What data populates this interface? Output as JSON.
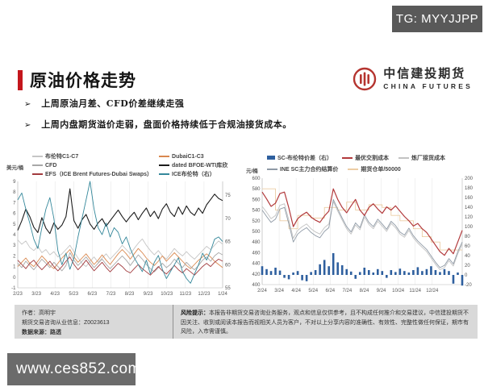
{
  "badge": {
    "text": "TG: MYYJJPP"
  },
  "header": {
    "title": "原油价格走势"
  },
  "logo": {
    "name": "中信建投期货",
    "subtitle": "CHINA FUTURES",
    "brand_red": "#b5342f"
  },
  "bullet_marker": "➢",
  "bullets": [
    "上周原油月差、CFD价差继续走强",
    "上周内盘期货溢价走弱，盘面价格持续低于合规油接货成本。"
  ],
  "footer": {
    "author_line": "作者：高明宇",
    "license_line": "期货交易咨询从业信息：Z0023613",
    "source_line": "数据来源：路透",
    "risk_label": "风险提示：",
    "risk_text": "本报告非期货交易咨询业务服务，观点和信息仅供参考，且不构成任何推介和交易建议，中信建投期货不因关注、收到或阅读本报告而视相关人员为客户，不对以上分享内容的准确性、有效性、完整性做任何保证，期市有风险，入市需谨慎。"
  },
  "watermark": {
    "text": "www.ces852.com"
  },
  "colors": {
    "accent_red": "#c4161c",
    "badge_bg": "#595959",
    "footer_bg": "#d9d9d9",
    "watermark_bg": "#6b6b6b"
  },
  "chart_data": [
    {
      "type": "line",
      "unit_label": "美元/桶",
      "legend_layout": "grid",
      "x_labels": [
        "2/23",
        "3/23",
        "4/23",
        "5/23",
        "6/23",
        "7/23",
        "8/23",
        "9/23",
        "10/23",
        "11/23",
        "12/23",
        "1/24"
      ],
      "x_span": 1.0,
      "axes": {
        "left": {
          "min": -1,
          "max": 9,
          "step": 1
        },
        "right": {
          "min": 55,
          "max": 78,
          "step": 5
        }
      },
      "series": [
        {
          "name": "布伦特C1-C7",
          "color": "#c6c6c6",
          "axis": "left",
          "type": "line",
          "values": [
            3.5,
            3.1,
            3.4,
            2.8,
            2.5,
            2.9,
            2.3,
            2.6,
            2.1,
            2.4,
            1.9,
            2.2,
            2.6,
            3.0,
            2.4,
            1.8,
            1.3,
            1.0,
            1.5,
            1.9,
            1.4,
            1.8,
            2.2,
            1.7,
            2.1,
            2.5,
            3.0,
            2.6,
            2.2,
            2.7,
            3.2,
            3.6,
            3.0,
            2.5,
            2.1,
            2.5,
            2.0,
            1.7,
            2.2,
            2.7,
            2.3,
            2.0,
            2.4,
            2.0,
            1.7,
            2.1,
            2.5,
            2.9,
            2.6,
            3.0,
            3.4,
            3.1
          ]
        },
        {
          "name": "DubaiC1-C3",
          "color": "#d9884f",
          "axis": "left",
          "type": "line",
          "values": [
            1.0,
            1.4,
            1.8,
            1.3,
            1.0,
            1.5,
            2.0,
            1.6,
            1.1,
            0.8,
            1.3,
            1.8,
            2.2,
            2.6,
            1.9,
            1.4,
            1.8,
            2.2,
            1.7,
            1.2,
            1.6,
            2.1,
            1.6,
            1.2,
            1.7,
            2.2,
            2.6,
            2.2,
            1.7,
            2.2,
            2.7,
            2.3,
            1.8,
            1.4,
            1.1,
            1.5,
            2.0,
            1.5,
            1.9,
            2.3,
            1.9,
            1.5,
            1.1,
            0.8,
            1.2,
            1.6,
            1.9,
            2.2,
            1.9,
            1.5,
            1.2,
            0.9
          ]
        },
        {
          "name": "CFD",
          "color": "#a8a8a8",
          "axis": "left",
          "type": "line",
          "values": [
            1.3,
            0.9,
            1.5,
            1.1,
            0.7,
            1.2,
            1.7,
            1.3,
            0.9,
            1.4,
            1.0,
            0.6,
            1.1,
            2.3,
            1.6,
            1.1,
            1.5,
            1.9,
            1.4,
            0.9,
            1.3,
            1.7,
            1.2,
            0.8,
            1.2,
            1.6,
            2.0,
            1.6,
            1.1,
            1.6,
            2.1,
            1.7,
            1.2,
            0.8,
            0.5,
            0.9,
            1.3,
            0.9,
            1.2,
            1.7,
            1.3,
            0.9,
            1.4,
            1.0,
            0.7,
            1.1,
            1.6,
            1.9,
            1.5,
            2.0,
            2.3,
            2.1
          ]
        },
        {
          "name": "dated BFOE-WTI库欣",
          "color": "#1c1c1c",
          "axis": "left",
          "type": "line",
          "width": 1.1,
          "values": [
            4.4,
            5.3,
            6.4,
            5.7,
            4.7,
            4.2,
            5.6,
            4.6,
            4.1,
            5.1,
            4.5,
            4.9,
            5.7,
            8.3,
            5.3,
            4.6,
            5.4,
            5.9,
            5.0,
            4.5,
            5.1,
            5.5,
            4.8,
            5.3,
            5.8,
            6.3,
            5.7,
            5.2,
            5.7,
            6.1,
            5.4,
            6.0,
            6.5,
            5.7,
            6.2,
            5.5,
            6.4,
            6.9,
            6.1,
            5.7,
            6.6,
            5.9,
            6.7,
            6.1,
            5.8,
            6.5,
            6.0,
            6.8,
            7.3,
            7.8,
            7.4,
            7.2
          ]
        },
        {
          "name": "EFS（ICE Brent Futures-Dubai Swaps）",
          "color": "#a23b3e",
          "axis": "left",
          "type": "line",
          "values": [
            1.6,
            1.2,
            0.8,
            1.3,
            1.6,
            1.1,
            0.7,
            1.1,
            1.5,
            1.0,
            0.6,
            1.0,
            1.5,
            1.9,
            1.2,
            0.7,
            1.1,
            1.6,
            1.1,
            0.6,
            1.0,
            1.4,
            0.9,
            0.5,
            0.9,
            1.3,
            1.0,
            0.6,
            0.4,
            0.8,
            1.2,
            0.8,
            0.5,
            0.2,
            0.6,
            1.0,
            0.6,
            0.3,
            0.7,
            1.1,
            0.7,
            0.4,
            0.8,
            0.5,
            0.2,
            0.6,
            1.0,
            1.3,
            1.0,
            1.4,
            1.7,
            1.5
          ]
        },
        {
          "name": "ICE布伦特（右）",
          "color": "#35889b",
          "axis": "right",
          "type": "line",
          "values": [
            74,
            75.5,
            72,
            69,
            65.5,
            63.5,
            68,
            72,
            74.5,
            70,
            63,
            60,
            62.5,
            59,
            61.5,
            66,
            70,
            74,
            78,
            72,
            68,
            66.5,
            69,
            66,
            68,
            67,
            64.5,
            66,
            63.5,
            61.5,
            60,
            58.5,
            61,
            58,
            60.5,
            62,
            59,
            57,
            58.5,
            60,
            61.5,
            58.5,
            57,
            56,
            58,
            60,
            62.5,
            61,
            63,
            65.5,
            66,
            65
          ]
        }
      ]
    },
    {
      "type": "line+bar",
      "unit_label": "元/桶",
      "legend_layout": "flow",
      "x_labels": [
        "2/24",
        "3/24",
        "4/24",
        "5/24",
        "6/24",
        "7/24",
        "8/24",
        "9/24",
        "10/24",
        "11/24",
        "12/24"
      ],
      "x_span": 0.85,
      "axes": {
        "left": {
          "min": 400,
          "max": 600,
          "step": 20
        },
        "right": {
          "min": -20,
          "max": 200,
          "step": 20
        }
      },
      "draw_order": [
        0,
        4,
        2,
        3,
        1
      ],
      "series": [
        {
          "name": "SC-布伦特价差（右）",
          "color": "#2e5f9e",
          "axis": "right",
          "type": "bar",
          "values": [
            18,
            12,
            8,
            15,
            9,
            -6,
            -9,
            5,
            8,
            -11,
            -13,
            6,
            10,
            22,
            31,
            18,
            45,
            26,
            20,
            12,
            7,
            -8,
            6,
            15,
            10,
            5,
            12,
            8,
            -6,
            10,
            6,
            13,
            8,
            5,
            10,
            16,
            8,
            12,
            18,
            10,
            6,
            12,
            8,
            -18,
            5,
            -22
          ]
        },
        {
          "name": "最优交割成本",
          "color": "#b23a3c",
          "axis": "left",
          "type": "line",
          "width": 1.2,
          "values": [
            574,
            561,
            547,
            553,
            571,
            574,
            544,
            509,
            524,
            531,
            536,
            527,
            521,
            517,
            529,
            538,
            580,
            560,
            545,
            535,
            548,
            560,
            540,
            530,
            545,
            552,
            542,
            534,
            546,
            540,
            548,
            538,
            528,
            520,
            510,
            515,
            505,
            498,
            486,
            474,
            462,
            455,
            468,
            458,
            480,
            502
          ]
        },
        {
          "name": "炼厂接货成本",
          "color": "#c2c2c2",
          "axis": "left",
          "type": "line",
          "values": [
            547,
            536,
            524,
            530,
            549,
            552,
            521,
            487,
            502,
            509,
            514,
            505,
            499,
            495,
            507,
            514,
            556,
            538,
            521,
            505,
            495,
            512,
            503,
            527,
            513,
            505,
            519,
            510,
            500,
            515,
            507,
            495,
            489,
            502,
            488,
            478,
            470,
            462,
            450,
            438,
            428,
            432,
            445,
            435,
            458,
            476
          ]
        },
        {
          "name": "INE SC主力合约结算价",
          "color": "#8f9aa6",
          "axis": "left",
          "type": "line",
          "values": [
            540,
            528,
            517,
            523,
            542,
            545,
            514,
            480,
            495,
            502,
            507,
            498,
            492,
            488,
            500,
            507,
            560,
            542,
            525,
            509,
            499,
            516,
            507,
            531,
            517,
            509,
            523,
            514,
            504,
            519,
            511,
            499,
            493,
            506,
            492,
            482,
            474,
            466,
            454,
            442,
            432,
            436,
            449,
            439,
            462,
            480
          ]
        },
        {
          "name": "期货仓单/50000",
          "color": "#eccda4",
          "axis": "left",
          "type": "line",
          "step": true,
          "values": [
            580,
            580,
            580,
            540,
            520,
            520,
            505,
            505,
            530,
            530,
            530,
            525,
            525,
            525,
            545,
            545,
            545,
            540,
            540,
            555,
            555,
            540,
            540,
            540,
            550,
            550,
            550,
            545,
            545,
            530,
            530,
            520,
            520,
            520,
            505,
            505,
            490,
            490,
            480,
            480,
            465,
            465,
            465,
            465,
            465,
            465
          ]
        }
      ]
    }
  ]
}
